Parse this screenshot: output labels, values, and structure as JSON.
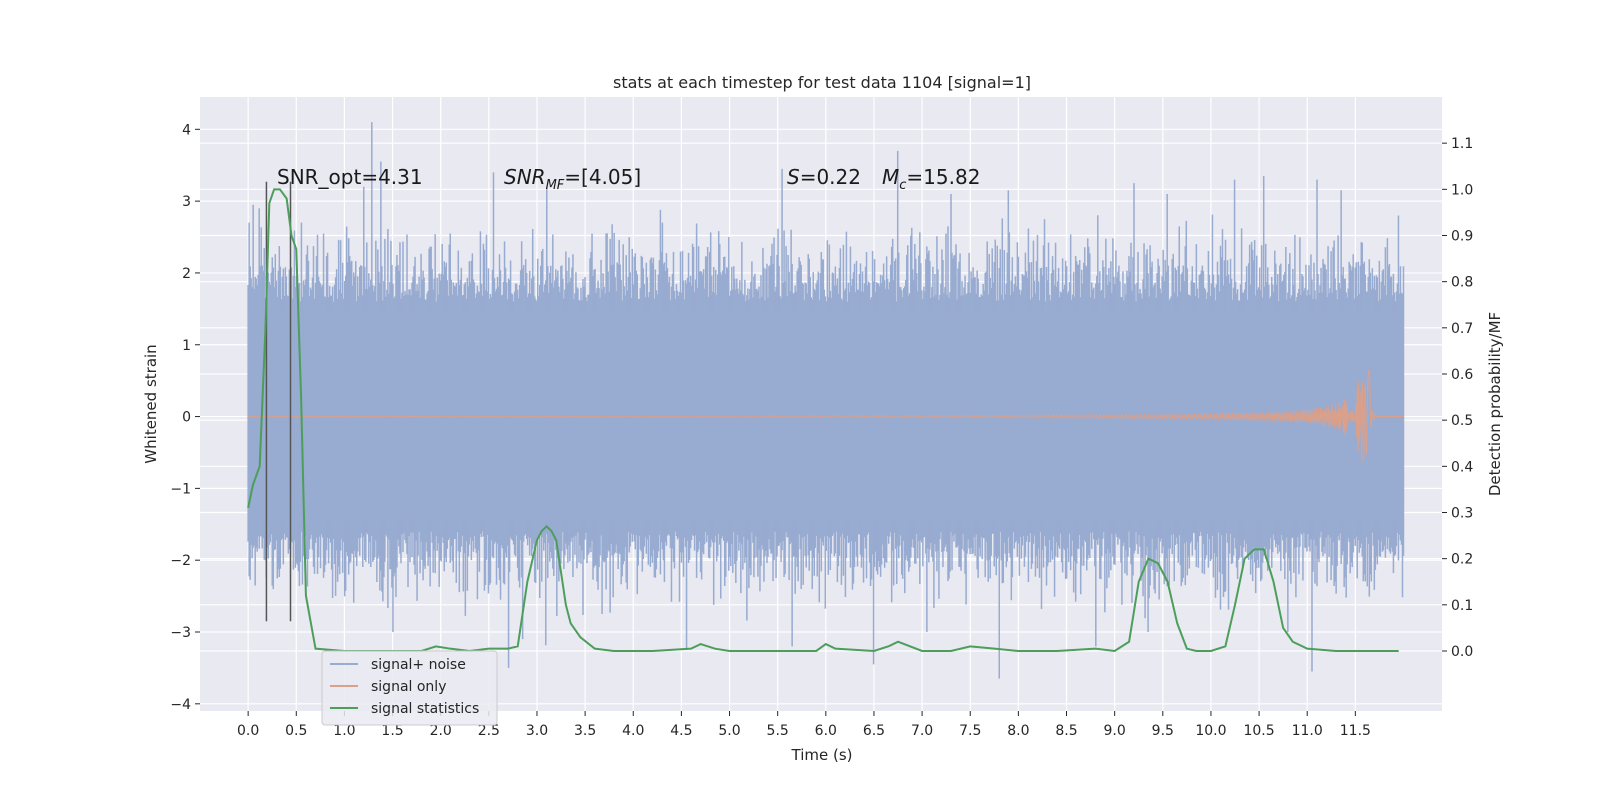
{
  "chart_data": {
    "type": "line",
    "title": "stats at each timestep for test data 1104 [signal=1]",
    "xlabel": "Time (s)",
    "ylabel_left": "Whitened strain",
    "ylabel_right": "Detection probability/MF",
    "xlim": [
      -0.5,
      12.4
    ],
    "ylim_left": [
      -4.1,
      4.45
    ],
    "ylim_right": [
      -0.13,
      1.2
    ],
    "x_ticks": [
      "0.0",
      "0.5",
      "1.0",
      "1.5",
      "2.0",
      "2.5",
      "3.0",
      "3.5",
      "4.0",
      "4.5",
      "5.0",
      "5.5",
      "6.0",
      "6.5",
      "7.0",
      "7.5",
      "8.0",
      "8.5",
      "9.0",
      "9.5",
      "10.0",
      "10.5",
      "11.0",
      "11.5"
    ],
    "y_ticks_left": [
      "4",
      "3",
      "2",
      "1",
      "0",
      "−1",
      "−2",
      "−3",
      "−4"
    ],
    "y_ticks_right": [
      "1.1",
      "1.0",
      "0.9",
      "0.8",
      "0.7",
      "0.6",
      "0.5",
      "0.4",
      "0.3",
      "0.2",
      "0.1",
      "0.0"
    ],
    "grid": true,
    "legend_position": "lower-left",
    "annotations": {
      "snr_opt": "SNR_opt=4.31",
      "snr_mf_main": "SNR",
      "snr_mf_sub": "MF",
      "snr_mf_value": "=[4.05]",
      "spin_symbol": "S",
      "spin_value": "=0.22",
      "mc_symbol": "M",
      "mc_sub": "c",
      "mc_value": "=15.82"
    },
    "vertical_markers_x": [
      0.19,
      0.44
    ],
    "series": [
      {
        "name": "signal+ noise",
        "color": "#98abd0",
        "axis": "left",
        "x_range": [
          0.0,
          12.0
        ],
        "band_min_typical": -1.6,
        "band_max_typical": 1.6,
        "peaks": [
          {
            "x": 0.05,
            "y": 2.95
          },
          {
            "x": 0.12,
            "y": 2.9
          },
          {
            "x": 0.55,
            "y": 2.7
          },
          {
            "x": 1.2,
            "y": 3.2
          },
          {
            "x": 1.28,
            "y": 4.1
          },
          {
            "x": 1.38,
            "y": 3.55
          },
          {
            "x": 2.1,
            "y": 2.55
          },
          {
            "x": 2.55,
            "y": 3.4
          },
          {
            "x": 3.1,
            "y": 3.2
          },
          {
            "x": 4.3,
            "y": 2.7
          },
          {
            "x": 5.55,
            "y": 3.45
          },
          {
            "x": 6.75,
            "y": 3.7
          },
          {
            "x": 7.3,
            "y": 3.1
          },
          {
            "x": 7.9,
            "y": 3.15
          },
          {
            "x": 9.2,
            "y": 3.25
          },
          {
            "x": 9.55,
            "y": 3.1
          },
          {
            "x": 10.25,
            "y": 3.3
          },
          {
            "x": 10.55,
            "y": 3.35
          },
          {
            "x": 11.1,
            "y": 3.3
          },
          {
            "x": 11.35,
            "y": 3.15
          },
          {
            "x": 11.95,
            "y": 2.8
          }
        ],
        "troughs": [
          {
            "x": 1.5,
            "y": -3.0
          },
          {
            "x": 2.7,
            "y": -3.5
          },
          {
            "x": 2.85,
            "y": -3.1
          },
          {
            "x": 4.55,
            "y": -3.25
          },
          {
            "x": 5.65,
            "y": -3.2
          },
          {
            "x": 6.5,
            "y": -3.45
          },
          {
            "x": 7.05,
            "y": -3.0
          },
          {
            "x": 7.8,
            "y": -3.65
          },
          {
            "x": 8.8,
            "y": -3.2
          },
          {
            "x": 9.35,
            "y": -3.0
          },
          {
            "x": 10.8,
            "y": -3.0
          },
          {
            "x": 11.05,
            "y": -3.55
          }
        ]
      },
      {
        "name": "signal only",
        "color": "#d9a08c",
        "axis": "left",
        "x_range": [
          0.0,
          12.0
        ],
        "merger_time": 11.65,
        "peak_amplitude": 0.65,
        "low_amplitude": 0.005
      },
      {
        "name": "signal statistics",
        "color": "#4c9e5a",
        "axis": "right",
        "x": [
          0.0,
          0.05,
          0.12,
          0.18,
          0.22,
          0.27,
          0.33,
          0.4,
          0.45,
          0.5,
          0.55,
          0.6,
          0.7,
          1.0,
          1.4,
          1.8,
          1.95,
          2.1,
          2.3,
          2.5,
          2.6,
          2.7,
          2.8,
          2.9,
          3.0,
          3.05,
          3.1,
          3.15,
          3.2,
          3.3,
          3.35,
          3.45,
          3.6,
          3.8,
          4.2,
          4.6,
          4.7,
          4.85,
          5.0,
          5.5,
          5.9,
          6.0,
          6.1,
          6.5,
          6.65,
          6.75,
          7.0,
          7.3,
          7.5,
          7.75,
          8.0,
          8.4,
          8.8,
          9.0,
          9.15,
          9.25,
          9.35,
          9.45,
          9.55,
          9.65,
          9.75,
          9.85,
          10.0,
          10.15,
          10.25,
          10.35,
          10.45,
          10.55,
          10.65,
          10.75,
          10.85,
          11.0,
          11.3,
          11.5,
          11.7,
          11.95
        ],
        "values": [
          0.31,
          0.36,
          0.4,
          0.7,
          0.97,
          1.0,
          1.0,
          0.98,
          0.9,
          0.87,
          0.55,
          0.12,
          0.005,
          0.0,
          0.0,
          0.0,
          0.01,
          0.005,
          0.0,
          0.005,
          0.005,
          0.005,
          0.01,
          0.15,
          0.24,
          0.26,
          0.27,
          0.26,
          0.24,
          0.1,
          0.06,
          0.03,
          0.005,
          0.0,
          0.0,
          0.005,
          0.015,
          0.005,
          0.0,
          0.0,
          0.0,
          0.015,
          0.005,
          0.0,
          0.01,
          0.02,
          0.0,
          0.0,
          0.01,
          0.005,
          0.0,
          0.0,
          0.005,
          0.0,
          0.02,
          0.15,
          0.2,
          0.19,
          0.15,
          0.06,
          0.005,
          0.0,
          0.0,
          0.01,
          0.1,
          0.2,
          0.22,
          0.22,
          0.15,
          0.05,
          0.02,
          0.005,
          0.0,
          0.0,
          0.0,
          0.0
        ]
      }
    ]
  }
}
